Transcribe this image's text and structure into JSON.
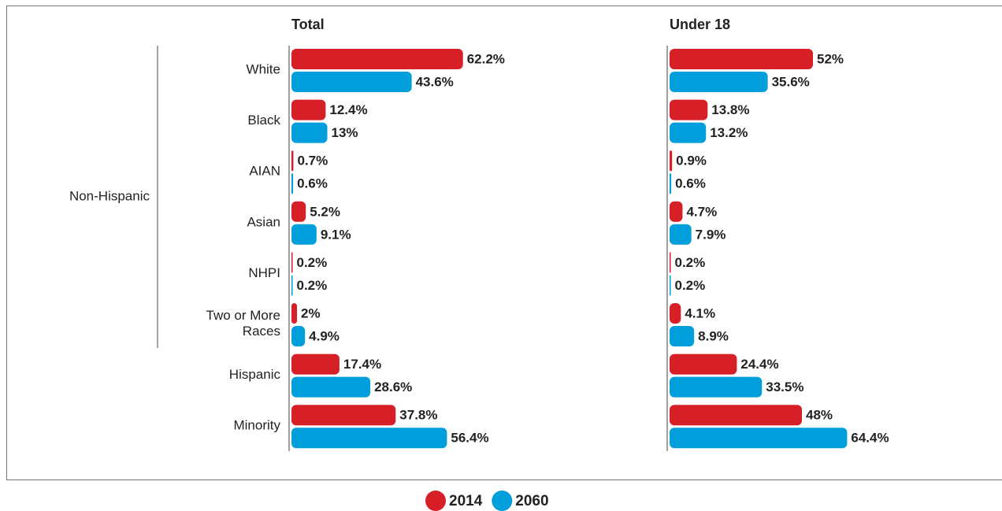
{
  "chart_data": [
    {
      "type": "bar",
      "orientation": "horizontal",
      "title": "Total",
      "group_label": "Non-Hispanic",
      "categories": [
        "White",
        "Black",
        "AIAN",
        "Asian",
        "NHPI",
        "Two or More Races",
        "Hispanic",
        "Minority"
      ],
      "series": [
        {
          "name": "2014",
          "color": "#d71f27",
          "values": [
            62.2,
            12.4,
            0.7,
            5.2,
            0.2,
            2,
            17.4,
            37.8
          ],
          "value_labels": [
            "62.2%",
            "12.4%",
            "0.7%",
            "5.2%",
            "0.2%",
            "2%",
            "17.4%",
            "37.8%"
          ]
        },
        {
          "name": "2060",
          "color": "#009fdb",
          "values": [
            43.6,
            13,
            0.6,
            9.1,
            0.2,
            4.9,
            28.6,
            56.4
          ],
          "value_labels": [
            "43.6%",
            "13%",
            "0.6%",
            "9.1%",
            "0.2%",
            "4.9%",
            "28.6%",
            "56.4%"
          ]
        }
      ]
    },
    {
      "type": "bar",
      "orientation": "horizontal",
      "title": "Under 18",
      "categories": [
        "White",
        "Black",
        "AIAN",
        "Asian",
        "NHPI",
        "Two or More Races",
        "Hispanic",
        "Minority"
      ],
      "series": [
        {
          "name": "2014",
          "color": "#d71f27",
          "values": [
            52,
            13.8,
            0.9,
            4.7,
            0.2,
            4.1,
            24.4,
            48
          ],
          "value_labels": [
            "52%",
            "13.8%",
            "0.9%",
            "4.7%",
            "0.2%",
            "4.1%",
            "24.4%",
            "48%"
          ]
        },
        {
          "name": "2060",
          "color": "#009fdb",
          "values": [
            35.6,
            13.2,
            0.6,
            7.9,
            0.2,
            8.9,
            33.5,
            64.4
          ],
          "value_labels": [
            "35.6%",
            "13.2%",
            "0.6%",
            "7.9%",
            "0.2%",
            "8.9%",
            "33.5%",
            "64.4%"
          ]
        }
      ]
    }
  ]
}
